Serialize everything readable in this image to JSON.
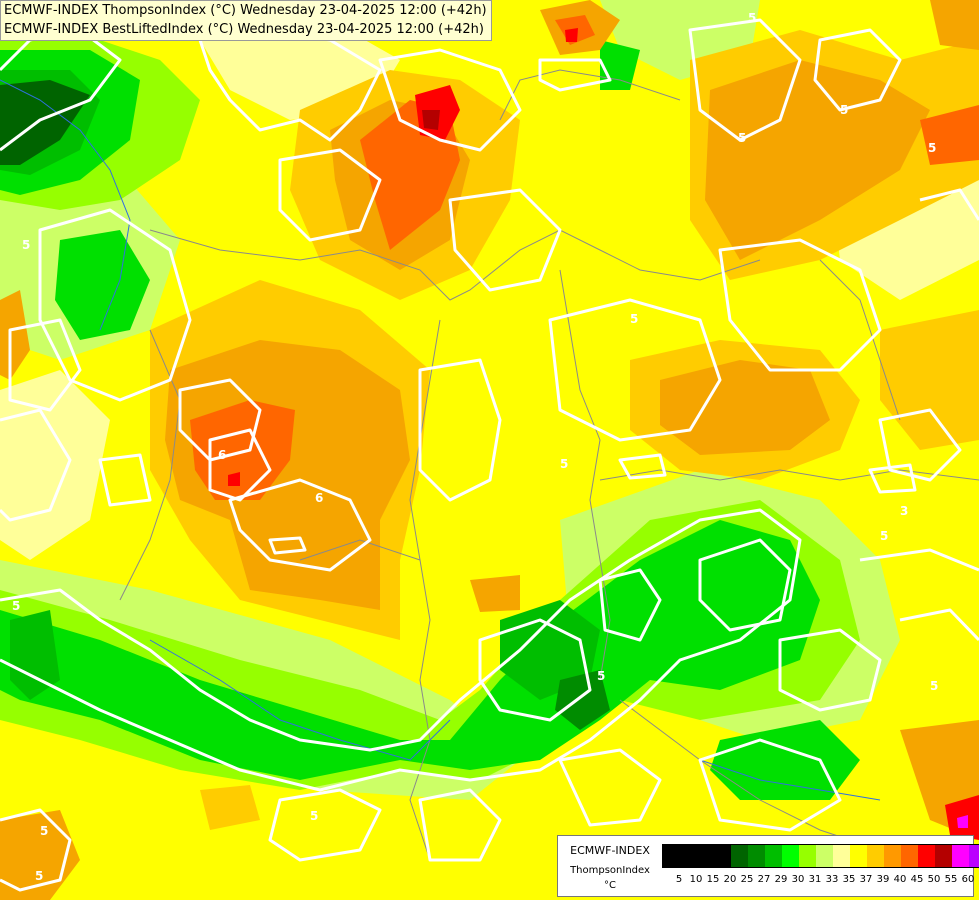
{
  "title": {
    "line1": "ECMWF-INDEX ThompsonIndex (°C) Wednesday 23-04-2025 12:00 (+42h)",
    "line2": "ECMWF-INDEX BestLiftedIndex (°C) Wednesday 23-04-2025 12:00 (+42h)"
  },
  "legend": {
    "model": "ECMWF-INDEX",
    "parameter": "ThompsonIndex",
    "unit": "°C",
    "colors": [
      "#000000",
      "#000000",
      "#000000",
      "#000000",
      "#006400",
      "#008c00",
      "#00be00",
      "#00ff00",
      "#96ff00",
      "#ccff66",
      "#ffff99",
      "#ffff00",
      "#ffcc00",
      "#ff9900",
      "#ff6600",
      "#ff0000",
      "#b40000",
      "#ff00ff",
      "#bb00ff",
      "#7f00ff",
      "#0000ff"
    ],
    "ticks": [
      "5",
      "10",
      "15",
      "20",
      "25",
      "27",
      "29",
      "30",
      "31",
      "33",
      "35",
      "37",
      "39",
      "40",
      "45",
      "50",
      "55",
      "60"
    ]
  },
  "contour_labels": [
    "5",
    "5",
    "5",
    "5",
    "5",
    "6",
    "6",
    "5",
    "5",
    "5",
    "5",
    "5",
    "5",
    "5",
    "3",
    "5",
    "5"
  ],
  "map_colors": {
    "background": "#ffff00",
    "pale_yellow": "#ffff99",
    "lime": "#ccff66",
    "green": "#96ff00",
    "bright_green": "#00e000",
    "mid_green": "#00be00",
    "dark_green": "#008c00",
    "darkest_green": "#006400",
    "light_orange": "#ffcc00",
    "orange": "#f5a500",
    "orange_red": "#ff6600",
    "red": "#ff0000",
    "dark_red": "#b40000",
    "contour": "#ffffff",
    "border": "#8a8a8a",
    "river": "#3070e0"
  }
}
